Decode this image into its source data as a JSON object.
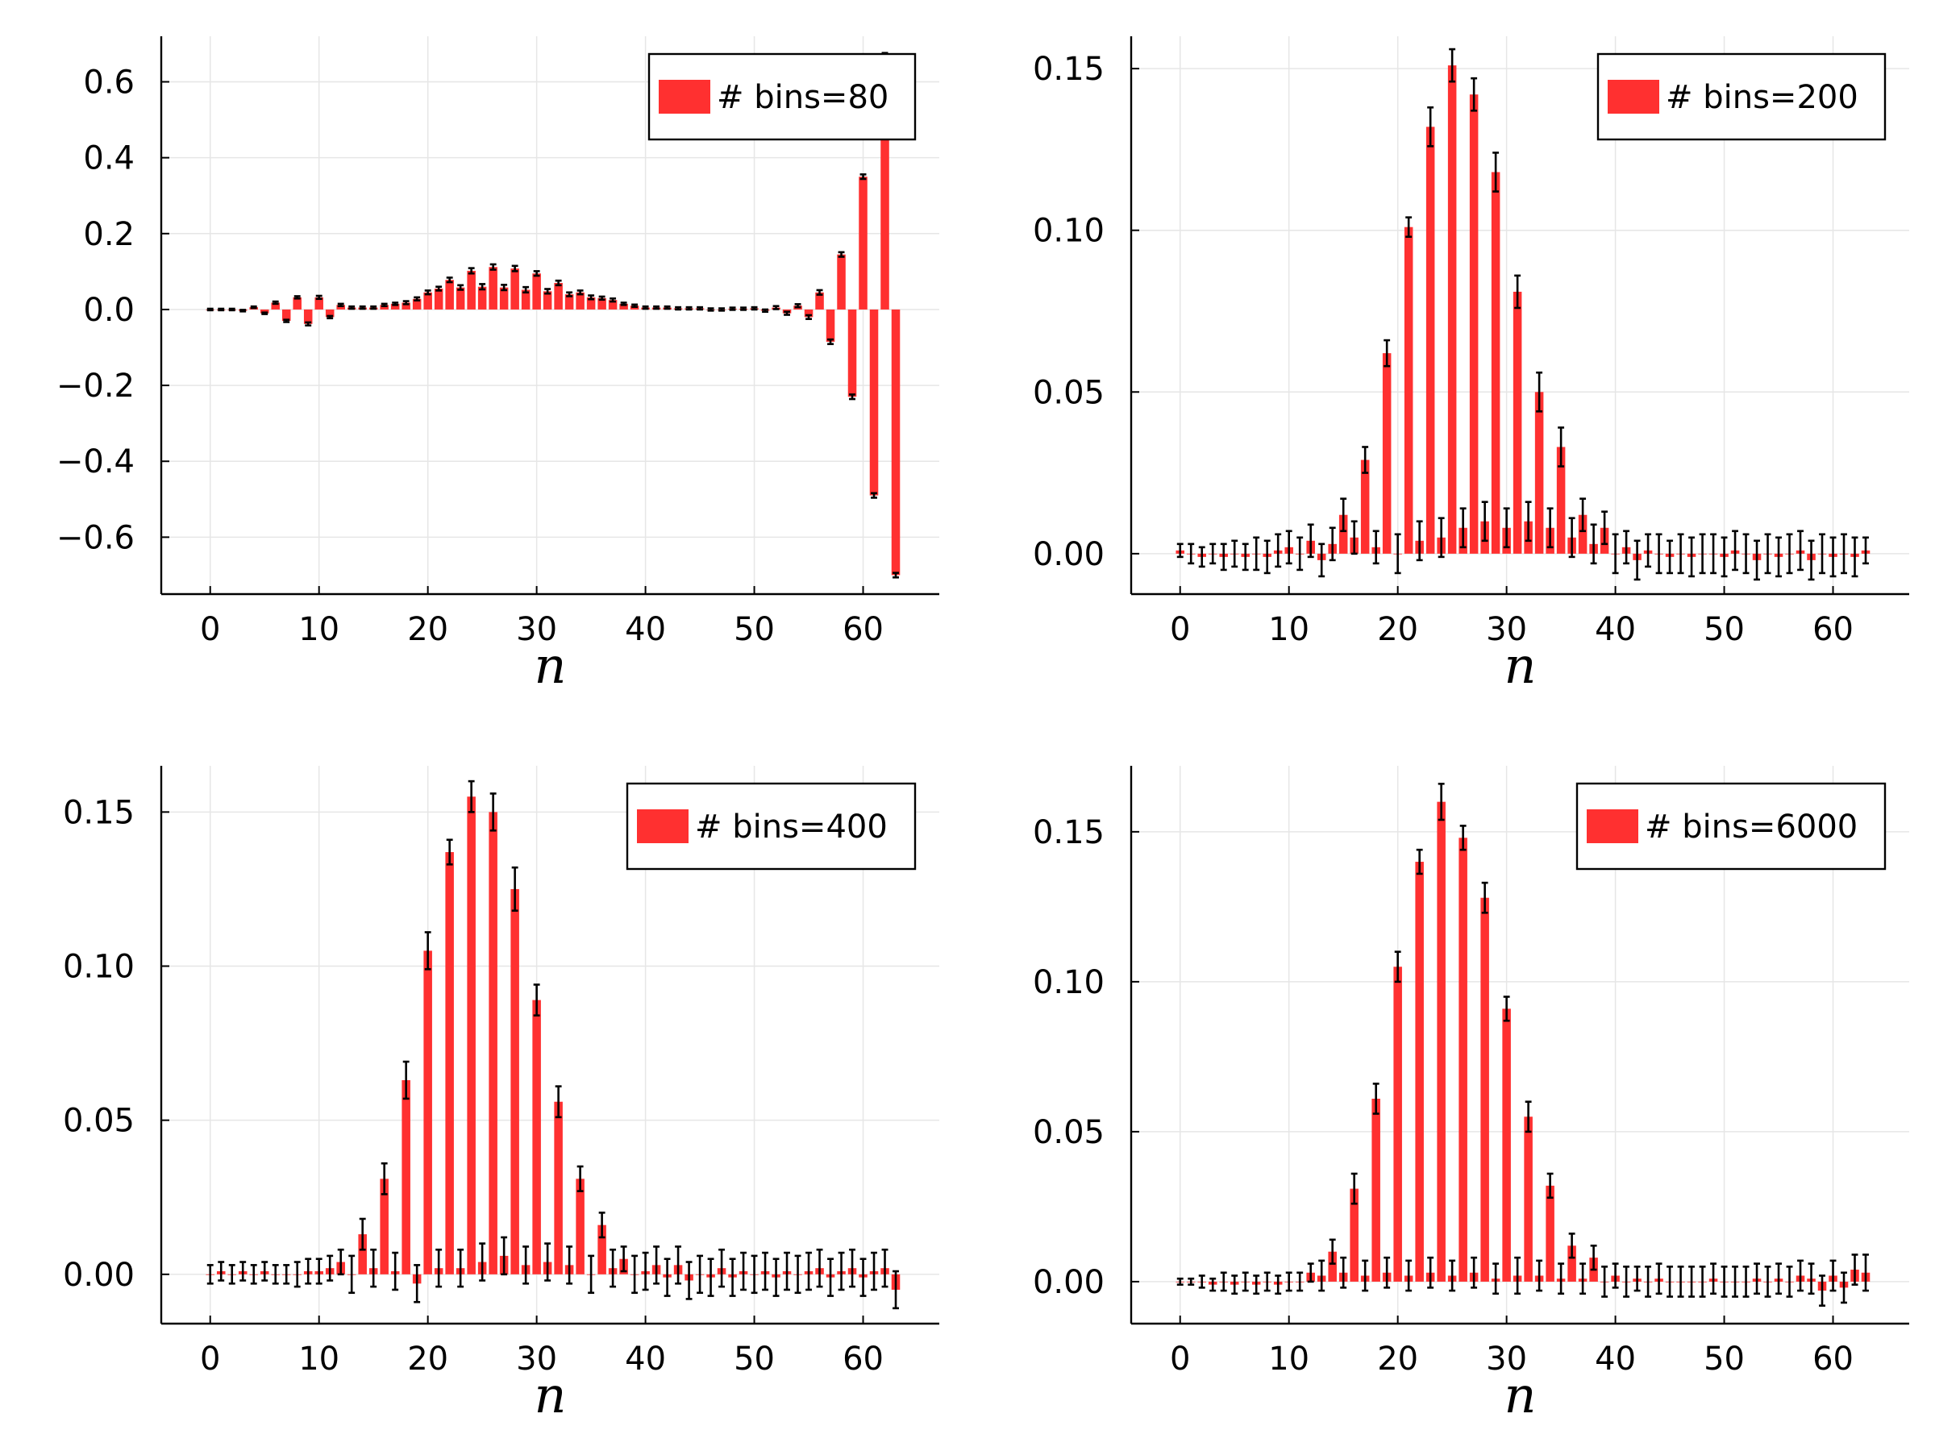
{
  "figure": {
    "xlabel": "n"
  },
  "chart_data": [
    {
      "type": "bar",
      "panel": "top-left",
      "legend": "# bins=80",
      "legend_position": "top-right",
      "color": "#ff3030",
      "errorbar_color": "#000000",
      "xlabel": "n",
      "xlim": [
        -4.5,
        67
      ],
      "ylim": [
        -0.75,
        0.72
      ],
      "xticks": [
        0,
        10,
        20,
        30,
        40,
        50,
        60
      ],
      "xtick_labels": [
        "0",
        "10",
        "20",
        "30",
        "40",
        "50",
        "60"
      ],
      "yticks": [
        -0.6,
        -0.4,
        -0.2,
        0.0,
        0.2,
        0.4,
        0.6
      ],
      "ytick_labels": [
        "−0.6",
        "−0.4",
        "−0.2",
        "0.0",
        "0.2",
        "0.4",
        "0.6"
      ],
      "grid": true,
      "x": [
        0,
        1,
        2,
        3,
        4,
        5,
        6,
        7,
        8,
        9,
        10,
        11,
        12,
        13,
        14,
        15,
        16,
        17,
        18,
        19,
        20,
        21,
        22,
        23,
        24,
        25,
        26,
        27,
        28,
        29,
        30,
        31,
        32,
        33,
        34,
        35,
        36,
        37,
        38,
        39,
        40,
        41,
        42,
        43,
        44,
        45,
        46,
        47,
        48,
        49,
        50,
        51,
        52,
        53,
        54,
        55,
        56,
        57,
        58,
        59,
        60,
        61,
        62,
        63
      ],
      "values": [
        0.0,
        0.0,
        0.0,
        -0.003,
        0.006,
        -0.01,
        0.018,
        -0.03,
        0.032,
        -0.038,
        0.032,
        -0.02,
        0.012,
        0.005,
        0.005,
        0.005,
        0.012,
        0.015,
        0.018,
        0.028,
        0.045,
        0.055,
        0.078,
        0.058,
        0.102,
        0.06,
        0.112,
        0.058,
        0.108,
        0.052,
        0.095,
        0.048,
        0.07,
        0.04,
        0.045,
        0.032,
        0.03,
        0.025,
        0.015,
        0.01,
        0.005,
        0.005,
        0.005,
        0.003,
        0.003,
        0.003,
        0.0,
        0.0,
        0.002,
        0.002,
        0.003,
        -0.003,
        0.005,
        -0.01,
        0.01,
        -0.02,
        0.045,
        -0.085,
        0.145,
        -0.23,
        0.35,
        -0.49,
        0.67,
        -0.7
      ],
      "errors": [
        0.002,
        0.002,
        0.002,
        0.002,
        0.002,
        0.002,
        0.003,
        0.003,
        0.003,
        0.004,
        0.004,
        0.003,
        0.003,
        0.003,
        0.003,
        0.003,
        0.003,
        0.003,
        0.004,
        0.004,
        0.005,
        0.005,
        0.006,
        0.006,
        0.007,
        0.007,
        0.007,
        0.007,
        0.007,
        0.007,
        0.006,
        0.006,
        0.006,
        0.005,
        0.005,
        0.005,
        0.004,
        0.004,
        0.003,
        0.003,
        0.003,
        0.003,
        0.003,
        0.003,
        0.003,
        0.003,
        0.003,
        0.003,
        0.003,
        0.003,
        0.003,
        0.003,
        0.004,
        0.004,
        0.004,
        0.005,
        0.006,
        0.006,
        0.006,
        0.006,
        0.006,
        0.006,
        0.006,
        0.006
      ]
    },
    {
      "type": "bar",
      "panel": "top-right",
      "legend": "# bins=200",
      "legend_position": "top-right",
      "color": "#ff3030",
      "errorbar_color": "#000000",
      "xlabel": "n",
      "xlim": [
        -4.5,
        67
      ],
      "ylim": [
        -0.0125,
        0.16
      ],
      "xticks": [
        0,
        10,
        20,
        30,
        40,
        50,
        60
      ],
      "xtick_labels": [
        "0",
        "10",
        "20",
        "30",
        "40",
        "50",
        "60"
      ],
      "yticks": [
        0.0,
        0.05,
        0.1,
        0.15
      ],
      "ytick_labels": [
        "0.00",
        "0.05",
        "0.10",
        "0.15"
      ],
      "grid": true,
      "x": [
        0,
        1,
        2,
        3,
        4,
        5,
        6,
        7,
        8,
        9,
        10,
        11,
        12,
        13,
        14,
        15,
        16,
        17,
        18,
        19,
        20,
        21,
        22,
        23,
        24,
        25,
        26,
        27,
        28,
        29,
        30,
        31,
        32,
        33,
        34,
        35,
        36,
        37,
        38,
        39,
        40,
        41,
        42,
        43,
        44,
        45,
        46,
        47,
        48,
        49,
        50,
        51,
        52,
        53,
        54,
        55,
        56,
        57,
        58,
        59,
        60,
        61,
        62,
        63
      ],
      "values": [
        0.001,
        0.0,
        -0.001,
        0.0,
        -0.001,
        0.0,
        -0.001,
        0.0,
        -0.001,
        0.001,
        0.002,
        0.0,
        0.004,
        -0.002,
        0.003,
        0.012,
        0.005,
        0.029,
        0.002,
        0.062,
        0.0,
        0.101,
        0.004,
        0.132,
        0.005,
        0.151,
        0.008,
        0.142,
        0.01,
        0.118,
        0.008,
        0.081,
        0.01,
        0.05,
        0.008,
        0.033,
        0.005,
        0.012,
        0.003,
        0.008,
        0.0,
        0.002,
        -0.002,
        0.001,
        0.0,
        -0.001,
        0.0,
        -0.001,
        0.0,
        0.0,
        -0.001,
        0.001,
        0.0,
        -0.002,
        0.0,
        -0.001,
        0.0,
        0.001,
        -0.002,
        0.0,
        -0.001,
        0.0,
        -0.001,
        0.001
      ],
      "errors": [
        0.002,
        0.003,
        0.003,
        0.003,
        0.004,
        0.004,
        0.004,
        0.005,
        0.005,
        0.005,
        0.005,
        0.005,
        0.005,
        0.005,
        0.005,
        0.005,
        0.005,
        0.004,
        0.005,
        0.004,
        0.006,
        0.003,
        0.006,
        0.006,
        0.006,
        0.005,
        0.006,
        0.005,
        0.006,
        0.006,
        0.006,
        0.005,
        0.006,
        0.006,
        0.006,
        0.006,
        0.006,
        0.005,
        0.006,
        0.005,
        0.006,
        0.005,
        0.006,
        0.005,
        0.006,
        0.005,
        0.006,
        0.006,
        0.006,
        0.006,
        0.006,
        0.006,
        0.006,
        0.006,
        0.006,
        0.006,
        0.006,
        0.006,
        0.006,
        0.006,
        0.006,
        0.006,
        0.006,
        0.004
      ]
    },
    {
      "type": "bar",
      "panel": "bottom-left",
      "legend": "# bins=400",
      "legend_position": "top-right",
      "color": "#ff3030",
      "errorbar_color": "#000000",
      "xlabel": "n",
      "xlim": [
        -4.5,
        67
      ],
      "ylim": [
        -0.016,
        0.165
      ],
      "xticks": [
        0,
        10,
        20,
        30,
        40,
        50,
        60
      ],
      "xtick_labels": [
        "0",
        "10",
        "20",
        "30",
        "40",
        "50",
        "60"
      ],
      "yticks": [
        0.0,
        0.05,
        0.1,
        0.15
      ],
      "ytick_labels": [
        "0.00",
        "0.05",
        "0.10",
        "0.15"
      ],
      "grid": true,
      "x": [
        0,
        1,
        2,
        3,
        4,
        5,
        6,
        7,
        8,
        9,
        10,
        11,
        12,
        13,
        14,
        15,
        16,
        17,
        18,
        19,
        20,
        21,
        22,
        23,
        24,
        25,
        26,
        27,
        28,
        29,
        30,
        31,
        32,
        33,
        34,
        35,
        36,
        37,
        38,
        39,
        40,
        41,
        42,
        43,
        44,
        45,
        46,
        47,
        48,
        49,
        50,
        51,
        52,
        53,
        54,
        55,
        56,
        57,
        58,
        59,
        60,
        61,
        62,
        63
      ],
      "values": [
        0.0,
        0.001,
        0.0,
        0.001,
        0.0,
        0.001,
        0.0,
        0.0,
        0.0,
        0.001,
        0.001,
        0.002,
        0.004,
        0.0,
        0.013,
        0.002,
        0.031,
        0.001,
        0.063,
        -0.003,
        0.105,
        0.002,
        0.137,
        0.002,
        0.155,
        0.004,
        0.15,
        0.006,
        0.125,
        0.003,
        0.089,
        0.004,
        0.056,
        0.003,
        0.031,
        0.0,
        0.016,
        0.002,
        0.005,
        0.0,
        0.001,
        0.003,
        -0.001,
        0.003,
        -0.002,
        0.0,
        -0.001,
        0.002,
        -0.001,
        0.001,
        0.0,
        0.001,
        -0.001,
        0.001,
        0.0,
        0.001,
        0.002,
        -0.001,
        0.001,
        0.002,
        -0.001,
        0.001,
        0.002,
        -0.005
      ],
      "errors": [
        0.003,
        0.003,
        0.003,
        0.003,
        0.003,
        0.003,
        0.003,
        0.003,
        0.004,
        0.004,
        0.004,
        0.004,
        0.004,
        0.006,
        0.005,
        0.006,
        0.005,
        0.006,
        0.006,
        0.006,
        0.006,
        0.006,
        0.004,
        0.006,
        0.005,
        0.006,
        0.006,
        0.006,
        0.007,
        0.006,
        0.005,
        0.006,
        0.005,
        0.006,
        0.004,
        0.006,
        0.004,
        0.006,
        0.004,
        0.006,
        0.006,
        0.006,
        0.006,
        0.006,
        0.006,
        0.006,
        0.006,
        0.006,
        0.006,
        0.006,
        0.006,
        0.006,
        0.006,
        0.006,
        0.006,
        0.006,
        0.006,
        0.006,
        0.006,
        0.006,
        0.006,
        0.006,
        0.006,
        0.006
      ]
    },
    {
      "type": "bar",
      "panel": "bottom-right",
      "legend": "# bins=6000",
      "legend_position": "top-right",
      "color": "#ff3030",
      "errorbar_color": "#000000",
      "xlabel": "n",
      "xlim": [
        -4.5,
        67
      ],
      "ylim": [
        -0.014,
        0.172
      ],
      "xticks": [
        0,
        10,
        20,
        30,
        40,
        50,
        60
      ],
      "xtick_labels": [
        "0",
        "10",
        "20",
        "30",
        "40",
        "50",
        "60"
      ],
      "yticks": [
        0.0,
        0.05,
        0.1,
        0.15
      ],
      "ytick_labels": [
        "0.00",
        "0.05",
        "0.10",
        "0.15"
      ],
      "grid": true,
      "x": [
        0,
        1,
        2,
        3,
        4,
        5,
        6,
        7,
        8,
        9,
        10,
        11,
        12,
        13,
        14,
        15,
        16,
        17,
        18,
        19,
        20,
        21,
        22,
        23,
        24,
        25,
        26,
        27,
        28,
        29,
        30,
        31,
        32,
        33,
        34,
        35,
        36,
        37,
        38,
        39,
        40,
        41,
        42,
        43,
        44,
        45,
        46,
        47,
        48,
        49,
        50,
        51,
        52,
        53,
        54,
        55,
        56,
        57,
        58,
        59,
        60,
        61,
        62,
        63
      ],
      "values": [
        0.0,
        0.0,
        0.0,
        -0.001,
        0.0,
        -0.001,
        0.0,
        -0.001,
        0.0,
        -0.001,
        0.0,
        0.0,
        0.003,
        0.002,
        0.01,
        0.003,
        0.031,
        0.002,
        0.061,
        0.003,
        0.105,
        0.002,
        0.14,
        0.003,
        0.16,
        0.002,
        0.148,
        0.003,
        0.128,
        0.001,
        0.091,
        0.002,
        0.055,
        0.002,
        0.032,
        0.001,
        0.012,
        0.001,
        0.008,
        0.0,
        0.002,
        0.0,
        0.001,
        0.0,
        0.001,
        0.0,
        0.0,
        0.0,
        0.0,
        0.001,
        0.0,
        0.0,
        0.0,
        0.001,
        0.0,
        0.001,
        0.0,
        0.002,
        0.001,
        -0.003,
        0.002,
        -0.002,
        0.004,
        0.003
      ],
      "errors": [
        0.001,
        0.001,
        0.002,
        0.002,
        0.003,
        0.003,
        0.003,
        0.003,
        0.003,
        0.003,
        0.003,
        0.003,
        0.003,
        0.005,
        0.004,
        0.005,
        0.005,
        0.005,
        0.005,
        0.005,
        0.005,
        0.005,
        0.004,
        0.005,
        0.006,
        0.005,
        0.004,
        0.005,
        0.005,
        0.005,
        0.004,
        0.006,
        0.005,
        0.005,
        0.004,
        0.005,
        0.004,
        0.005,
        0.004,
        0.005,
        0.004,
        0.005,
        0.004,
        0.005,
        0.005,
        0.005,
        0.005,
        0.005,
        0.005,
        0.005,
        0.005,
        0.005,
        0.005,
        0.005,
        0.005,
        0.005,
        0.005,
        0.005,
        0.005,
        0.005,
        0.005,
        0.005,
        0.005,
        0.006
      ]
    }
  ]
}
